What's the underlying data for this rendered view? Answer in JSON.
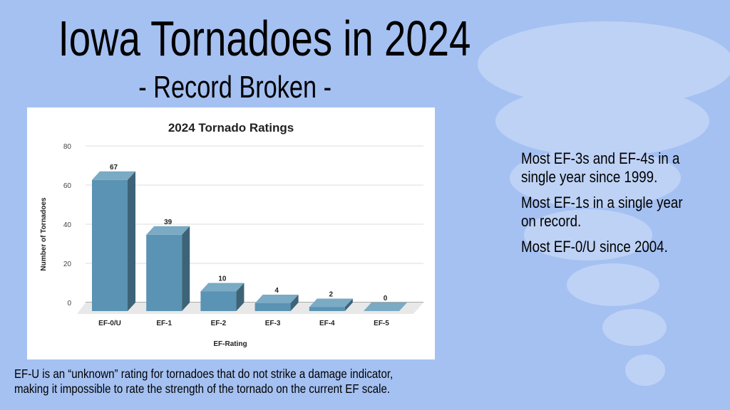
{
  "slide": {
    "title": "Iowa Tornadoes in 2024",
    "subtitle": "- Record Broken -",
    "facts": [
      "Most EF-3s and EF-4s in a",
      "single year since 1999.",
      "Most EF-1s in a single year",
      "on record.",
      "Most EF-0/U since 2004."
    ],
    "note_lines": [
      "EF-U is an “unknown” rating for tornadoes that do not strike a damage indicator,",
      "making it impossible to rate the strength of the tornado on the current EF scale."
    ],
    "background_color": "#a5c1f2",
    "background_image": "tornado-illustration"
  },
  "chart_data": {
    "type": "bar",
    "style": "3d",
    "title": "2024 Tornado Ratings",
    "xlabel": "EF-Rating",
    "ylabel": "Number of Tornadoes",
    "categories": [
      "EF-0/U",
      "EF-1",
      "EF-2",
      "EF-3",
      "EF-4",
      "EF-5"
    ],
    "values": [
      67,
      39,
      10,
      4,
      2,
      0
    ],
    "data_labels": [
      "67",
      "39",
      "10",
      "4",
      "2",
      "0"
    ],
    "ylim": [
      0,
      80
    ],
    "yticks": [
      "0",
      "20",
      "40",
      "60",
      "80"
    ],
    "grid": true,
    "legend": "none",
    "bar_color": "#5a93b3"
  }
}
